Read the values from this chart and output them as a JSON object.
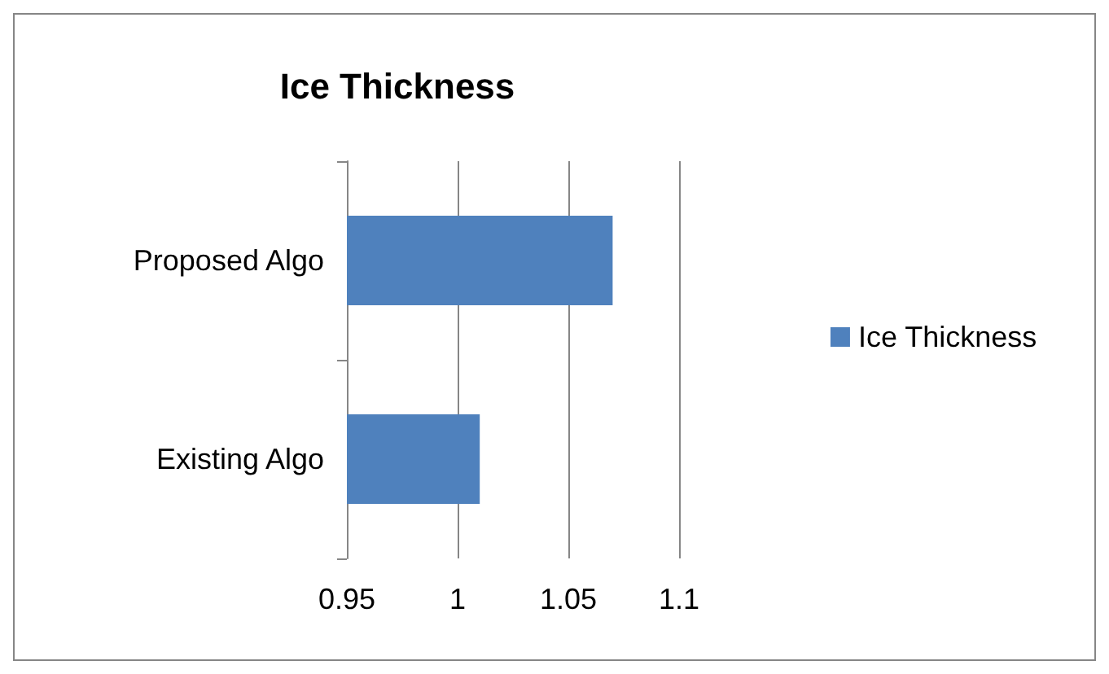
{
  "chart_data": {
    "type": "bar",
    "orientation": "horizontal",
    "title": "Ice Thickness",
    "categories": [
      "Proposed Algo",
      "Existing Algo"
    ],
    "series": [
      {
        "name": "Ice Thickness",
        "color": "#4f81bd",
        "values": [
          1.07,
          1.01
        ]
      }
    ],
    "xlim": [
      0.95,
      1.1
    ],
    "xticks": [
      0.95,
      1,
      1.05,
      1.1
    ],
    "grid": "x",
    "legend": "right"
  }
}
